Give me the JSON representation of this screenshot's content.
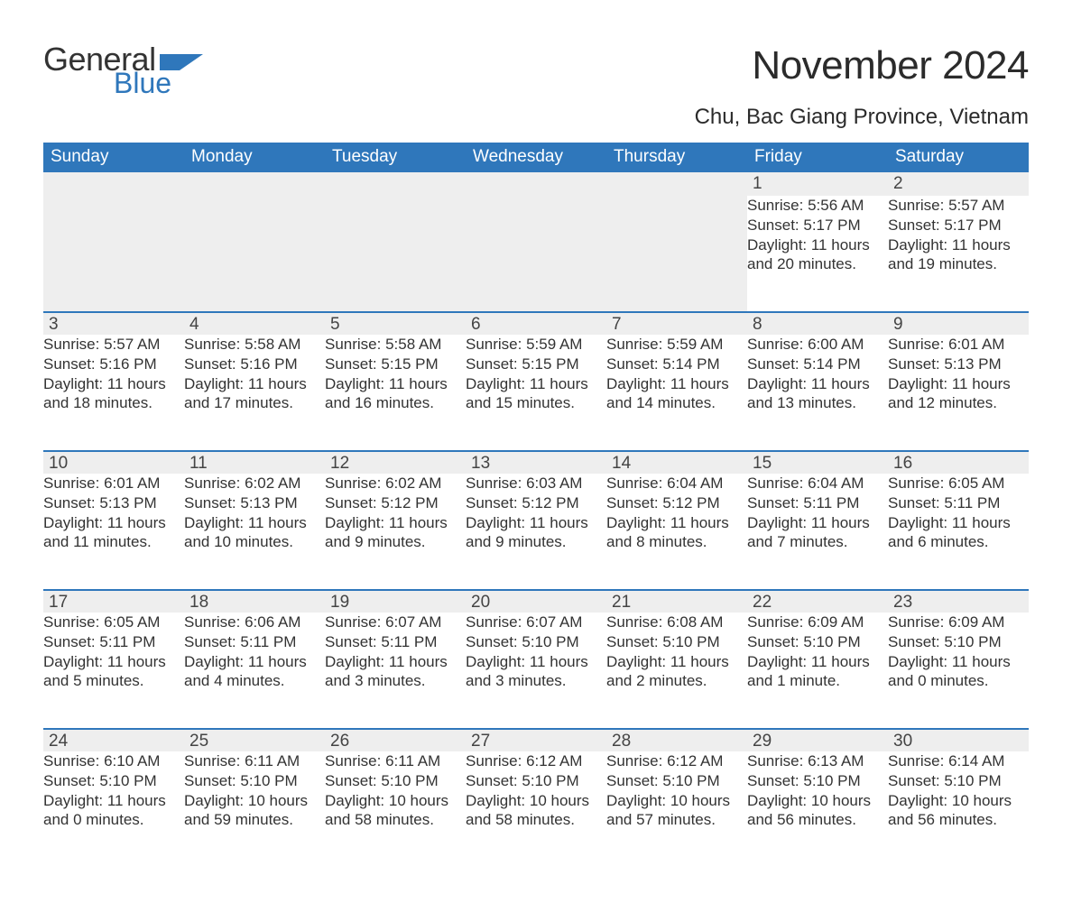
{
  "brand": {
    "word1": "General",
    "word2": "Blue",
    "flag_color": "#2f77bb",
    "text_color": "#333333"
  },
  "title": "November 2024",
  "location": "Chu, Bac Giang Province, Vietnam",
  "header_bg": "#2f77bb",
  "header_text_color": "#ffffff",
  "daynum_bg": "#eeeeee",
  "divider_color": "#2f77bb",
  "weekdays": [
    "Sunday",
    "Monday",
    "Tuesday",
    "Wednesday",
    "Thursday",
    "Friday",
    "Saturday"
  ],
  "weeks": [
    [
      null,
      null,
      null,
      null,
      null,
      {
        "n": "1",
        "sunrise": "5:56 AM",
        "sunset": "5:17 PM",
        "daylight": "11 hours and 20 minutes."
      },
      {
        "n": "2",
        "sunrise": "5:57 AM",
        "sunset": "5:17 PM",
        "daylight": "11 hours and 19 minutes."
      }
    ],
    [
      {
        "n": "3",
        "sunrise": "5:57 AM",
        "sunset": "5:16 PM",
        "daylight": "11 hours and 18 minutes."
      },
      {
        "n": "4",
        "sunrise": "5:58 AM",
        "sunset": "5:16 PM",
        "daylight": "11 hours and 17 minutes."
      },
      {
        "n": "5",
        "sunrise": "5:58 AM",
        "sunset": "5:15 PM",
        "daylight": "11 hours and 16 minutes."
      },
      {
        "n": "6",
        "sunrise": "5:59 AM",
        "sunset": "5:15 PM",
        "daylight": "11 hours and 15 minutes."
      },
      {
        "n": "7",
        "sunrise": "5:59 AM",
        "sunset": "5:14 PM",
        "daylight": "11 hours and 14 minutes."
      },
      {
        "n": "8",
        "sunrise": "6:00 AM",
        "sunset": "5:14 PM",
        "daylight": "11 hours and 13 minutes."
      },
      {
        "n": "9",
        "sunrise": "6:01 AM",
        "sunset": "5:13 PM",
        "daylight": "11 hours and 12 minutes."
      }
    ],
    [
      {
        "n": "10",
        "sunrise": "6:01 AM",
        "sunset": "5:13 PM",
        "daylight": "11 hours and 11 minutes."
      },
      {
        "n": "11",
        "sunrise": "6:02 AM",
        "sunset": "5:13 PM",
        "daylight": "11 hours and 10 minutes."
      },
      {
        "n": "12",
        "sunrise": "6:02 AM",
        "sunset": "5:12 PM",
        "daylight": "11 hours and 9 minutes."
      },
      {
        "n": "13",
        "sunrise": "6:03 AM",
        "sunset": "5:12 PM",
        "daylight": "11 hours and 9 minutes."
      },
      {
        "n": "14",
        "sunrise": "6:04 AM",
        "sunset": "5:12 PM",
        "daylight": "11 hours and 8 minutes."
      },
      {
        "n": "15",
        "sunrise": "6:04 AM",
        "sunset": "5:11 PM",
        "daylight": "11 hours and 7 minutes."
      },
      {
        "n": "16",
        "sunrise": "6:05 AM",
        "sunset": "5:11 PM",
        "daylight": "11 hours and 6 minutes."
      }
    ],
    [
      {
        "n": "17",
        "sunrise": "6:05 AM",
        "sunset": "5:11 PM",
        "daylight": "11 hours and 5 minutes."
      },
      {
        "n": "18",
        "sunrise": "6:06 AM",
        "sunset": "5:11 PM",
        "daylight": "11 hours and 4 minutes."
      },
      {
        "n": "19",
        "sunrise": "6:07 AM",
        "sunset": "5:11 PM",
        "daylight": "11 hours and 3 minutes."
      },
      {
        "n": "20",
        "sunrise": "6:07 AM",
        "sunset": "5:10 PM",
        "daylight": "11 hours and 3 minutes."
      },
      {
        "n": "21",
        "sunrise": "6:08 AM",
        "sunset": "5:10 PM",
        "daylight": "11 hours and 2 minutes."
      },
      {
        "n": "22",
        "sunrise": "6:09 AM",
        "sunset": "5:10 PM",
        "daylight": "11 hours and 1 minute."
      },
      {
        "n": "23",
        "sunrise": "6:09 AM",
        "sunset": "5:10 PM",
        "daylight": "11 hours and 0 minutes."
      }
    ],
    [
      {
        "n": "24",
        "sunrise": "6:10 AM",
        "sunset": "5:10 PM",
        "daylight": "11 hours and 0 minutes."
      },
      {
        "n": "25",
        "sunrise": "6:11 AM",
        "sunset": "5:10 PM",
        "daylight": "10 hours and 59 minutes."
      },
      {
        "n": "26",
        "sunrise": "6:11 AM",
        "sunset": "5:10 PM",
        "daylight": "10 hours and 58 minutes."
      },
      {
        "n": "27",
        "sunrise": "6:12 AM",
        "sunset": "5:10 PM",
        "daylight": "10 hours and 58 minutes."
      },
      {
        "n": "28",
        "sunrise": "6:12 AM",
        "sunset": "5:10 PM",
        "daylight": "10 hours and 57 minutes."
      },
      {
        "n": "29",
        "sunrise": "6:13 AM",
        "sunset": "5:10 PM",
        "daylight": "10 hours and 56 minutes."
      },
      {
        "n": "30",
        "sunrise": "6:14 AM",
        "sunset": "5:10 PM",
        "daylight": "10 hours and 56 minutes."
      }
    ]
  ],
  "labels": {
    "sunrise": "Sunrise: ",
    "sunset": "Sunset: ",
    "daylight": "Daylight: "
  }
}
